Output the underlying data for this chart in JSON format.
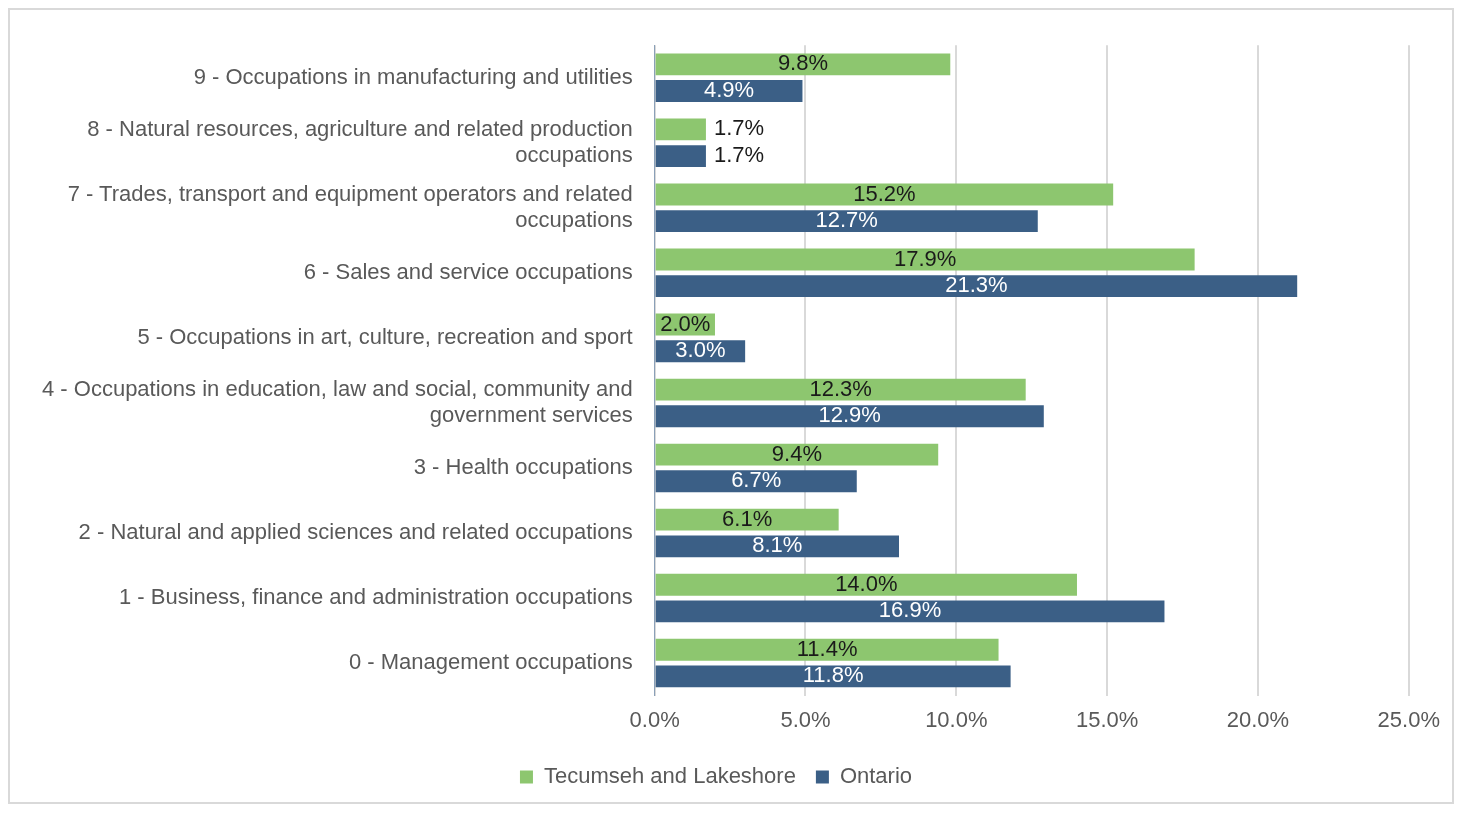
{
  "chart_data": {
    "type": "bar",
    "orientation": "horizontal",
    "categories": [
      "9 - Occupations in manufacturing and utilities",
      "8 - Natural resources, agriculture and related production occupations",
      "7 - Trades, transport and equipment operators and related occupations",
      "6 - Sales and service occupations",
      "5 - Occupations in art, culture, recreation and sport",
      "4 - Occupations in education, law and social, community and government services",
      "3 - Health occupations",
      "2 - Natural and applied sciences and related occupations",
      "1 - Business, finance and administration occupations",
      "0 - Management occupations"
    ],
    "series": [
      {
        "name": "Tecumseh and Lakeshore",
        "color": "#8dc66f",
        "values": [
          9.8,
          1.7,
          15.2,
          17.9,
          2.0,
          12.3,
          9.4,
          6.1,
          14.0,
          11.4
        ],
        "value_labels": [
          "9.8%",
          "1.7%",
          "15.2%",
          "17.9%",
          "2.0%",
          "12.3%",
          "9.4%",
          "6.1%",
          "14.0%",
          "11.4%"
        ]
      },
      {
        "name": "Ontario",
        "color": "#3b5f86",
        "values": [
          4.9,
          1.7,
          12.7,
          21.3,
          3.0,
          12.9,
          6.7,
          8.1,
          16.9,
          11.8
        ],
        "value_labels": [
          "4.9%",
          "1.7%",
          "12.7%",
          "21.3%",
          "3.0%",
          "12.9%",
          "6.7%",
          "8.1%",
          "16.9%",
          "11.8%"
        ]
      }
    ],
    "xlim": [
      0,
      25
    ],
    "xticks": [
      {
        "value": 0,
        "label": "0.0%"
      },
      {
        "value": 5,
        "label": "5.0%"
      },
      {
        "value": 10,
        "label": "10.0%"
      },
      {
        "value": 15,
        "label": "15.0%"
      },
      {
        "value": 20,
        "label": "20.0%"
      },
      {
        "value": 25,
        "label": "25.0%"
      }
    ],
    "grid": "x",
    "legend": "bottom"
  }
}
